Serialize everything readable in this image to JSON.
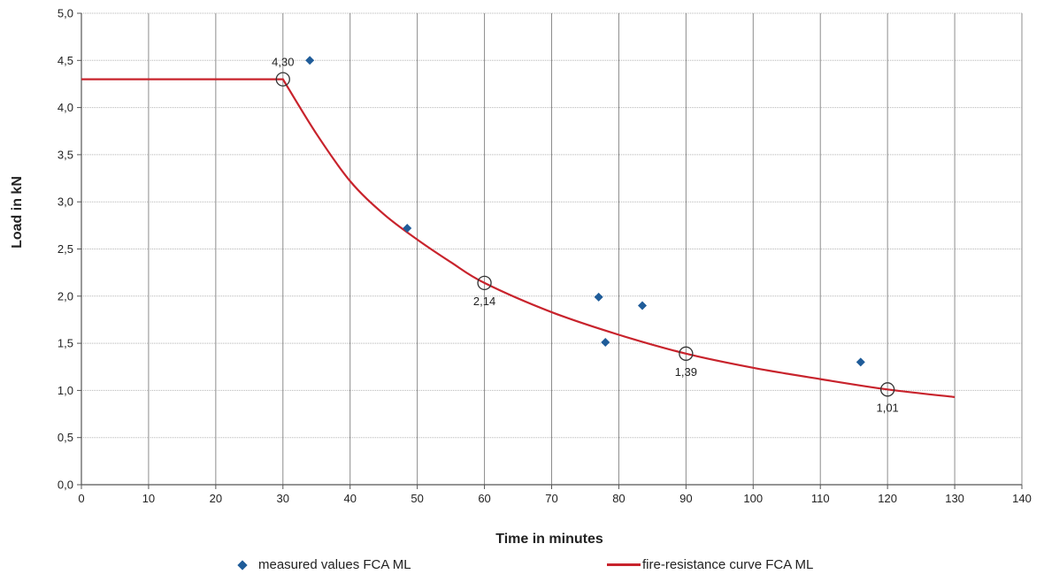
{
  "chart_data": {
    "type": "scatter",
    "xlabel": "Time in minutes",
    "ylabel": "Load in kN",
    "xlim": [
      0,
      140
    ],
    "ylim": [
      0,
      5
    ],
    "x_ticks": [
      0,
      10,
      20,
      30,
      40,
      50,
      60,
      70,
      80,
      90,
      100,
      110,
      120,
      130,
      140
    ],
    "y_ticks": [
      "0,0",
      "0,5",
      "1,0",
      "1,5",
      "2,0",
      "2,5",
      "3,0",
      "3,5",
      "4,0",
      "4,5",
      "5,0"
    ],
    "y_tick_values": [
      0,
      0.5,
      1.0,
      1.5,
      2.0,
      2.5,
      3.0,
      3.5,
      4.0,
      4.5,
      5.0
    ],
    "grid": true,
    "legend_position": "bottom",
    "series": [
      {
        "name": "measured values FCA ML",
        "kind": "scatter",
        "marker": "diamond",
        "color": "#1f5c99",
        "points": [
          {
            "x": 34,
            "y": 4.5
          },
          {
            "x": 48.5,
            "y": 2.72
          },
          {
            "x": 77,
            "y": 1.99
          },
          {
            "x": 78,
            "y": 1.51
          },
          {
            "x": 83.5,
            "y": 1.9
          },
          {
            "x": 116,
            "y": 1.3
          }
        ]
      },
      {
        "name": "fire-resistance curve FCA ML",
        "kind": "line",
        "color": "#c8232c",
        "points": [
          {
            "x": 0,
            "y": 4.3
          },
          {
            "x": 30,
            "y": 4.3
          },
          {
            "x": 35,
            "y": 3.72
          },
          {
            "x": 40,
            "y": 3.22
          },
          {
            "x": 45,
            "y": 2.87
          },
          {
            "x": 50,
            "y": 2.6
          },
          {
            "x": 55,
            "y": 2.36
          },
          {
            "x": 60,
            "y": 2.14
          },
          {
            "x": 70,
            "y": 1.83
          },
          {
            "x": 80,
            "y": 1.59
          },
          {
            "x": 90,
            "y": 1.39
          },
          {
            "x": 100,
            "y": 1.24
          },
          {
            "x": 110,
            "y": 1.12
          },
          {
            "x": 120,
            "y": 1.01
          },
          {
            "x": 130,
            "y": 0.93
          }
        ]
      }
    ],
    "annotations": [
      {
        "x": 30,
        "y": 4.3,
        "label": "4,30",
        "position": "above"
      },
      {
        "x": 60,
        "y": 2.14,
        "label": "2,14",
        "position": "below"
      },
      {
        "x": 90,
        "y": 1.39,
        "label": "1,39",
        "position": "below"
      },
      {
        "x": 120,
        "y": 1.01,
        "label": "1,01",
        "position": "below"
      }
    ]
  }
}
